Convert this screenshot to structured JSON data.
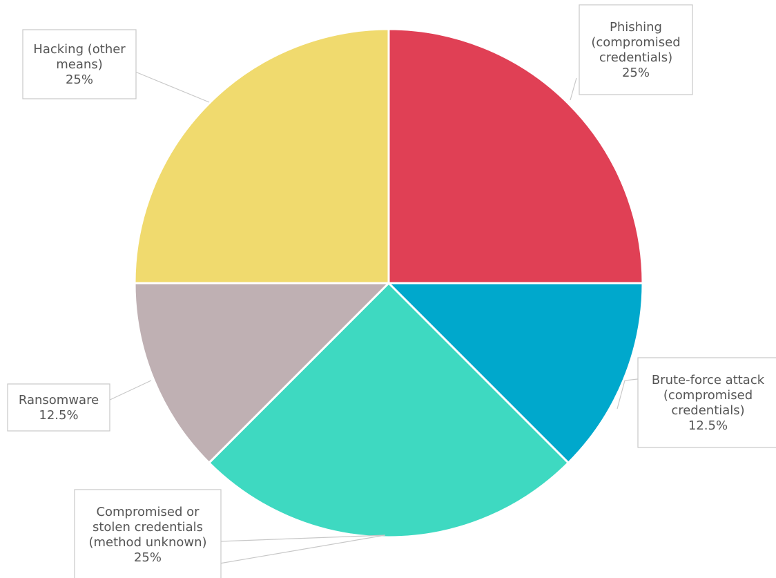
{
  "chart_data": {
    "type": "pie",
    "title": "",
    "value_unit": "%",
    "legend": "none",
    "slices": [
      {
        "label": "Phishing (compromised credentials)",
        "label_lines": [
          "Phishing",
          "(compromised",
          "credentials)"
        ],
        "value": 25,
        "value_label": "25%",
        "color": "#e04055"
      },
      {
        "label": "Brute-force attack (compromised credentials)",
        "label_lines": [
          "Brute-force attack",
          "(compromised",
          "credentials)"
        ],
        "value": 12.5,
        "value_label": "12.5%",
        "color": "#00a8cc"
      },
      {
        "label": "Compromised or stolen credentials (method unknown)",
        "label_lines": [
          "Compromised or",
          "stolen credentials",
          "(method unknown)"
        ],
        "value": 25,
        "value_label": "25%",
        "color": "#3ed9c1"
      },
      {
        "label": "Ransomware",
        "label_lines": [
          "Ransomware"
        ],
        "value": 12.5,
        "value_label": "12.5%",
        "color": "#bfb0b3"
      },
      {
        "label": "Hacking (other means)",
        "label_lines": [
          "Hacking (other",
          "means)"
        ],
        "value": 25,
        "value_label": "25%",
        "color": "#f0da6e"
      }
    ]
  }
}
